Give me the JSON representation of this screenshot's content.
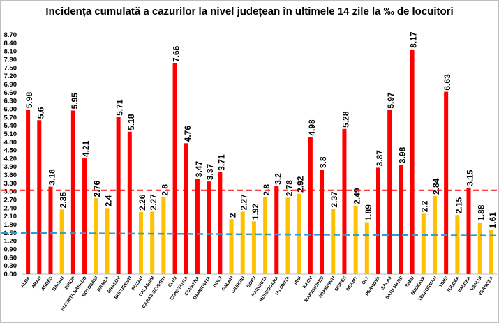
{
  "chart_data": {
    "type": "bar",
    "title": "Incidența cumulată a cazurilor la nivel județean în ultimele 14 zile la ‰ de locuitori",
    "categories": [
      "ALBA",
      "ARAD",
      "ARGES",
      "BACAU",
      "BIHOR",
      "BISTRITA NASAUD",
      "BOTOSANI",
      "BRAILA",
      "BRASOV",
      "BUCURESTI",
      "BUZAU",
      "CALARASI",
      "CARAS-SEVERIN",
      "CLUJ",
      "CONSTANTA",
      "COVASNA",
      "DAMBOVITA",
      "DOLJ",
      "GALATI",
      "GIURGIU",
      "GORJ",
      "HARGHITA",
      "HUNEDOARA",
      "IALOMITA",
      "IASI",
      "ILFOV",
      "MARAMURES",
      "MEHEDINTI",
      "MURES",
      "NEAMT",
      "OLT",
      "PRAHOVA",
      "SALAJ",
      "SATU MARE",
      "SIBIU",
      "SUCEAVA",
      "TELEORMAN",
      "TIMIS",
      "TULCEA",
      "VALCEA",
      "VASLUI",
      "VRANCEA"
    ],
    "values": [
      5.98,
      5.6,
      3.18,
      2.35,
      5.95,
      4.21,
      2.76,
      2.4,
      5.71,
      5.18,
      2.26,
      2.27,
      2.8,
      7.66,
      4.76,
      3.47,
      3.37,
      3.71,
      2,
      2.27,
      1.92,
      2.8,
      3.2,
      2.78,
      2.92,
      4.98,
      3.8,
      2.37,
      5.28,
      2.49,
      1.89,
      3.87,
      5.97,
      3.98,
      8.17,
      2.2,
      2.84,
      6.63,
      2.15,
      3.15,
      1.88,
      1.61
    ],
    "value_labels": [
      "5.98",
      "5.6",
      "3.18",
      "2.35",
      "5.95",
      "4.21",
      "2.76",
      "2.4",
      "5.71",
      "5.18",
      "2.26",
      "2.27",
      "2.8",
      "7.66",
      "4.76",
      "3.47",
      "3.37",
      "3.71",
      "2",
      "2.27",
      "1.92",
      "2.8",
      "3.2",
      "2.78",
      "2.92",
      "4.98",
      "3.8",
      "2.37",
      "5.28",
      "2.49",
      "1.89",
      "3.87",
      "5.97",
      "3.98",
      "8.17",
      "2.2",
      "2.84",
      "6.63",
      "2.15",
      "3.15",
      "1.88",
      "1.61"
    ],
    "y_ticks": [
      "0.00",
      "0.30",
      "0.60",
      "0.90",
      "1.20",
      "1.50",
      "1.80",
      "2.10",
      "2.40",
      "2.70",
      "3.00",
      "3.30",
      "3.60",
      "3.90",
      "4.20",
      "4.50",
      "4.80",
      "5.10",
      "5.40",
      "5.70",
      "6.00",
      "6.30",
      "6.60",
      "6.90",
      "7.20",
      "7.50",
      "7.80",
      "8.10",
      "8.40",
      "8.70"
    ],
    "ylim": [
      0,
      8.7
    ],
    "threshold_high": 3,
    "red_line_level": 3.05,
    "blue_line_start": 1.5,
    "blue_line_end": 1.4,
    "grid": false,
    "colors": {
      "above": "#ff0000",
      "below": "#ffc000",
      "red_line": "#ff0000",
      "blue_line": "#2e9bd6",
      "axis": "#bfbfbf"
    }
  }
}
